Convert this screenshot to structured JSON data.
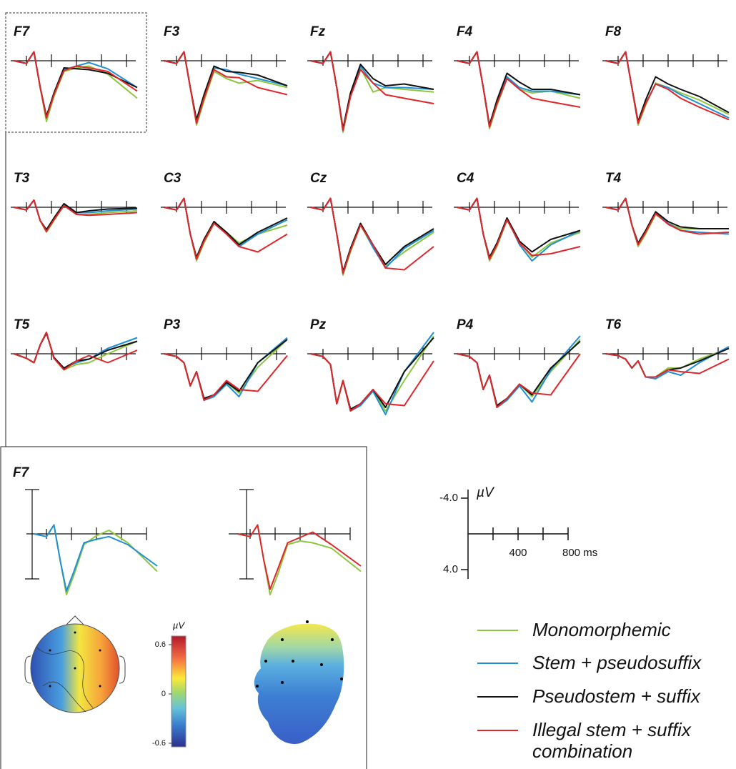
{
  "x": [
    -100,
    0,
    60,
    110,
    160,
    220,
    300,
    400,
    500,
    650,
    886
  ],
  "panels": [
    {
      "label": "F7",
      "values": [
        [
          0,
          0.3,
          -1,
          3,
          6.8,
          4,
          1.2,
          0.8,
          0.6,
          1.5,
          4.2
        ],
        [
          0,
          0.3,
          -1,
          3,
          6.4,
          3.8,
          1.0,
          0.6,
          0.2,
          0.9,
          3.0
        ],
        [
          0,
          0.3,
          -1,
          3,
          6.2,
          3.6,
          0.8,
          0.9,
          1.0,
          1.4,
          3.0
        ],
        [
          0,
          0.3,
          -1,
          3,
          6.4,
          3.8,
          1.1,
          0.6,
          0.8,
          1.2,
          3.4
        ]
      ]
    },
    {
      "label": "F3",
      "values": [
        [
          0,
          0.3,
          -1,
          3,
          7.2,
          4.5,
          1.2,
          2.0,
          2.5,
          2.2,
          3.0
        ],
        [
          0,
          0.3,
          -1,
          3,
          6.8,
          4,
          0.8,
          1.0,
          1.5,
          2.0,
          2.8
        ],
        [
          0,
          0.3,
          -1,
          3,
          6.6,
          3.8,
          0.6,
          1.2,
          1.3,
          1.6,
          2.8
        ],
        [
          0,
          0.3,
          -1,
          3,
          7.0,
          4.2,
          1.0,
          1.8,
          1.9,
          3.0,
          3.8
        ]
      ]
    },
    {
      "label": "Fz",
      "values": [
        [
          0,
          0.3,
          -1,
          3,
          8,
          4,
          0.8,
          3.5,
          3.0,
          3.2,
          3.5
        ],
        [
          0,
          0.3,
          -1,
          3,
          7.8,
          3.8,
          0.6,
          2.5,
          3.0,
          3.0,
          3.2
        ],
        [
          0,
          0.3,
          -1,
          3,
          7.6,
          3.6,
          0.4,
          2.0,
          2.8,
          2.6,
          3.2
        ],
        [
          0,
          0.3,
          -1,
          3,
          7.8,
          4,
          1.0,
          2.5,
          3.8,
          4.2,
          4.8
        ]
      ]
    },
    {
      "label": "F4",
      "values": [
        [
          0,
          0.3,
          -1,
          3,
          7.6,
          5,
          2.0,
          3.2,
          3.6,
          3.4,
          4.2
        ],
        [
          0,
          0.3,
          -1,
          3,
          7.4,
          4.8,
          1.8,
          3.0,
          3.4,
          3.4,
          3.8
        ],
        [
          0,
          0.3,
          -1,
          3,
          7.2,
          4.4,
          1.4,
          2.4,
          3.2,
          3.2,
          3.8
        ],
        [
          0,
          0.3,
          -1,
          3,
          7.4,
          4.8,
          2.0,
          3.2,
          4.2,
          4.6,
          5.2
        ]
      ]
    },
    {
      "label": "F8",
      "values": [
        [
          0,
          0.3,
          -1,
          3,
          7.2,
          5,
          2.5,
          3.0,
          3.6,
          4.4,
          6.0
        ],
        [
          0,
          0.3,
          -1,
          3,
          7.0,
          4.8,
          2.6,
          3.0,
          3.8,
          4.8,
          6.4
        ],
        [
          0,
          0.3,
          -1,
          3,
          6.8,
          4.4,
          1.8,
          2.6,
          3.2,
          4.0,
          5.8
        ],
        [
          0,
          0.3,
          -1,
          3,
          7.0,
          4.8,
          2.6,
          3.2,
          4.2,
          5.2,
          6.6
        ]
      ]
    },
    {
      "label": "T3",
      "values": [
        [
          0,
          0.3,
          -0.8,
          1.5,
          2.8,
          1.5,
          -0.3,
          0.8,
          0.8,
          0.6,
          0.4
        ],
        [
          0,
          0.3,
          -0.8,
          1.5,
          2.6,
          1.3,
          -0.3,
          0.6,
          0.6,
          0.4,
          0.2
        ],
        [
          0,
          0.3,
          -0.8,
          1.5,
          2.5,
          1.2,
          -0.4,
          0.6,
          0.4,
          0.2,
          0.1
        ],
        [
          0,
          0.3,
          -0.8,
          1.5,
          2.7,
          1.4,
          -0.2,
          0.8,
          0.9,
          0.8,
          0.6
        ]
      ]
    },
    {
      "label": "C3",
      "values": [
        [
          0,
          0.3,
          -1,
          3,
          6,
          4,
          1.8,
          2.8,
          4.0,
          3.0,
          2.0
        ],
        [
          0,
          0.3,
          -1,
          3,
          5.8,
          3.8,
          1.6,
          3.0,
          4.4,
          3.0,
          1.4
        ],
        [
          0,
          0.3,
          -1,
          3,
          5.6,
          3.6,
          1.6,
          2.8,
          4.2,
          2.8,
          1.2
        ],
        [
          0,
          0.3,
          -1,
          3,
          5.8,
          3.8,
          1.8,
          3.0,
          4.4,
          5.0,
          3.0
        ]
      ]
    },
    {
      "label": "Cz",
      "values": [
        [
          0,
          0.3,
          -1,
          3,
          7.6,
          5,
          2.0,
          4.5,
          6.6,
          5.0,
          2.8
        ],
        [
          0,
          0.3,
          -1,
          3,
          7.4,
          4.8,
          1.8,
          4.5,
          6.8,
          4.6,
          2.6
        ],
        [
          0,
          0.3,
          -1,
          3,
          7.2,
          4.6,
          1.8,
          4.2,
          6.4,
          4.4,
          2.4
        ],
        [
          0,
          0.3,
          -1,
          3,
          7.4,
          4.8,
          2.0,
          4.2,
          6.8,
          7.0,
          4.4
        ]
      ]
    },
    {
      "label": "C4",
      "values": [
        [
          0,
          0.3,
          -1,
          3,
          6,
          4.4,
          1.4,
          4.0,
          5.6,
          4.0,
          2.8
        ],
        [
          0,
          0.3,
          -1,
          3,
          5.8,
          4.2,
          1.2,
          4.2,
          6.0,
          4.2,
          2.6
        ],
        [
          0,
          0.3,
          -1,
          3,
          5.6,
          4.0,
          1.2,
          3.8,
          5.0,
          3.6,
          2.6
        ],
        [
          0,
          0.3,
          -1,
          3,
          5.8,
          4.2,
          1.4,
          4.0,
          5.4,
          5.2,
          4.4
        ]
      ]
    },
    {
      "label": "T4",
      "values": [
        [
          0,
          0.3,
          -1,
          2,
          4.4,
          3.0,
          0.8,
          1.8,
          2.4,
          2.4,
          2.4
        ],
        [
          0,
          0.3,
          -1,
          2,
          4.2,
          2.8,
          0.6,
          1.8,
          2.6,
          2.8,
          3.0
        ],
        [
          0,
          0.3,
          -1,
          2,
          4.0,
          2.6,
          0.5,
          1.6,
          2.2,
          2.4,
          2.4
        ],
        [
          0,
          0.3,
          -1,
          2,
          4.2,
          2.8,
          0.7,
          1.9,
          2.6,
          3.0,
          2.8
        ]
      ]
    },
    {
      "label": "T5",
      "values": [
        [
          0,
          0.5,
          1.0,
          -1,
          -2.4,
          0.5,
          1.8,
          1.2,
          1.0,
          0.0,
          -1.4
        ],
        [
          0,
          0.5,
          1.0,
          -1,
          -2.4,
          0.5,
          1.6,
          1.0,
          0.6,
          -0.6,
          -1.8
        ],
        [
          0,
          0.5,
          1.0,
          -1,
          -2.3,
          0.4,
          1.6,
          0.8,
          0.6,
          -0.4,
          -1.4
        ],
        [
          0,
          0.5,
          1.0,
          -1,
          -2.4,
          0.5,
          1.8,
          0.8,
          0.2,
          1.0,
          -0.4
        ]
      ]
    },
    {
      "label": "P3",
      "values": [
        [
          0,
          0.3,
          1.0,
          3.6,
          2.0,
          5.2,
          4.6,
          3.2,
          4.4,
          1.5,
          -1.6
        ],
        [
          0,
          0.3,
          1.0,
          3.6,
          2.0,
          5.2,
          4.8,
          3.4,
          4.8,
          1.0,
          -1.8
        ],
        [
          0,
          0.3,
          1.0,
          3.6,
          2.0,
          5.0,
          4.6,
          3.2,
          4.2,
          1.0,
          -1.6
        ],
        [
          0,
          0.3,
          1.0,
          3.6,
          2.0,
          5.2,
          4.6,
          3.0,
          4.0,
          4.2,
          0.2
        ]
      ]
    },
    {
      "label": "Pz",
      "values": [
        [
          0,
          0.3,
          1.2,
          5.6,
          3.0,
          6.4,
          5.6,
          4.0,
          6.4,
          3.0,
          -2.0
        ],
        [
          0,
          0.3,
          1.2,
          5.6,
          3.0,
          6.4,
          5.8,
          4.2,
          6.8,
          2.0,
          -2.4
        ],
        [
          0,
          0.3,
          1.2,
          5.6,
          3.0,
          6.2,
          5.6,
          4.0,
          6.0,
          2.0,
          -1.8
        ],
        [
          0,
          0.3,
          1.2,
          5.6,
          3.0,
          6.4,
          5.6,
          4.0,
          5.6,
          5.8,
          0.8
        ]
      ]
    },
    {
      "label": "P4",
      "values": [
        [
          0,
          0.3,
          1.0,
          4.0,
          2.4,
          6.0,
          5.0,
          3.4,
          4.8,
          2.0,
          -1.6
        ],
        [
          0,
          0.3,
          1.0,
          4.0,
          2.4,
          6.0,
          5.2,
          3.6,
          5.4,
          1.8,
          -2.0
        ],
        [
          0,
          0.3,
          1.0,
          4.0,
          2.4,
          5.8,
          5.0,
          3.4,
          4.6,
          1.6,
          -1.4
        ],
        [
          0,
          0.3,
          1.0,
          4.0,
          2.4,
          6.0,
          5.0,
          3.4,
          4.4,
          4.6,
          0.0
        ]
      ]
    },
    {
      "label": "T6",
      "values": [
        [
          0,
          0.2,
          0.6,
          1.6,
          0.8,
          2.6,
          2.6,
          1.6,
          1.6,
          0.6,
          -0.6
        ],
        [
          0,
          0.2,
          0.6,
          1.6,
          0.8,
          2.6,
          2.8,
          2.0,
          2.4,
          1.0,
          -0.8
        ],
        [
          0,
          0.2,
          0.6,
          1.6,
          0.8,
          2.6,
          2.6,
          1.8,
          1.6,
          0.8,
          -0.6
        ],
        [
          0,
          0.2,
          0.6,
          1.6,
          0.8,
          2.6,
          2.6,
          1.8,
          2.0,
          2.2,
          0.6
        ]
      ]
    }
  ],
  "detail": {
    "label": "F7",
    "left": [
      [
        0,
        0.3,
        -1,
        3,
        6.8,
        4.6,
        1.2,
        0.2,
        -0.4,
        1.0,
        4.2
      ],
      [
        0,
        0.3,
        -1,
        3,
        6.4,
        4.2,
        1.0,
        0.6,
        0.3,
        1.2,
        3.6
      ]
    ],
    "right": [
      [
        0,
        0.3,
        -1,
        3,
        6.8,
        4.6,
        1.2,
        0.8,
        1.0,
        1.6,
        4.2
      ],
      [
        0,
        0.3,
        -1,
        3,
        6.2,
        4.0,
        1.0,
        0.4,
        -0.2,
        1.2,
        3.6
      ]
    ]
  },
  "legend": [
    {
      "name": "Monomorphemic",
      "color": "#8dc63f"
    },
    {
      "name": "Stem + pseudosuffix",
      "color": "#1f8fd6"
    },
    {
      "name": "Pseudostem + suffix",
      "color": "#111111"
    },
    {
      "name": "Illegal stem + suffix combination",
      "color": "#e0262a"
    }
  ],
  "scale": {
    "ylabel": "µV",
    "yticks": [
      {
        "value": -4,
        "label": "-4.0"
      },
      {
        "value": 4,
        "label": "4.0"
      }
    ],
    "xticks": [
      {
        "value": 200,
        "label": null
      },
      400,
      {
        "value": 600,
        "label": null
      },
      {
        "value": 800,
        "label": "800 ms"
      }
    ]
  },
  "colorbar": {
    "label": "µV",
    "ticks": [
      0.6,
      0,
      -0.6
    ]
  }
}
